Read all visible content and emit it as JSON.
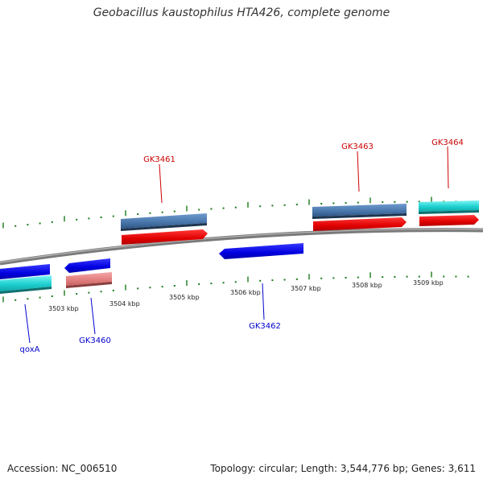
{
  "title": "Geobacillus kaustophilus HTA426, complete genome",
  "footer": {
    "accession": "Accession: NC_006510",
    "summary": "Topology: circular; Length: 3,544,776 bp; Genes: 3,611"
  },
  "colors": {
    "forward_label": "#cc0000",
    "reverse_label": "#0000cc",
    "tick": "#1a7a1a",
    "backbone": "#808080"
  },
  "kbp_labels": [
    "3503 kbp",
    "3504 kbp",
    "3505 kbp",
    "3506 kbp",
    "3507 kbp",
    "3508 kbp",
    "3509 kbp"
  ],
  "gene_labels": {
    "gk3461": "GK3461",
    "gk3463": "GK3463",
    "gk3464": "GK3464",
    "qoxa": "qoxA",
    "gk3460": "GK3460",
    "gk3462": "GK3462"
  }
}
